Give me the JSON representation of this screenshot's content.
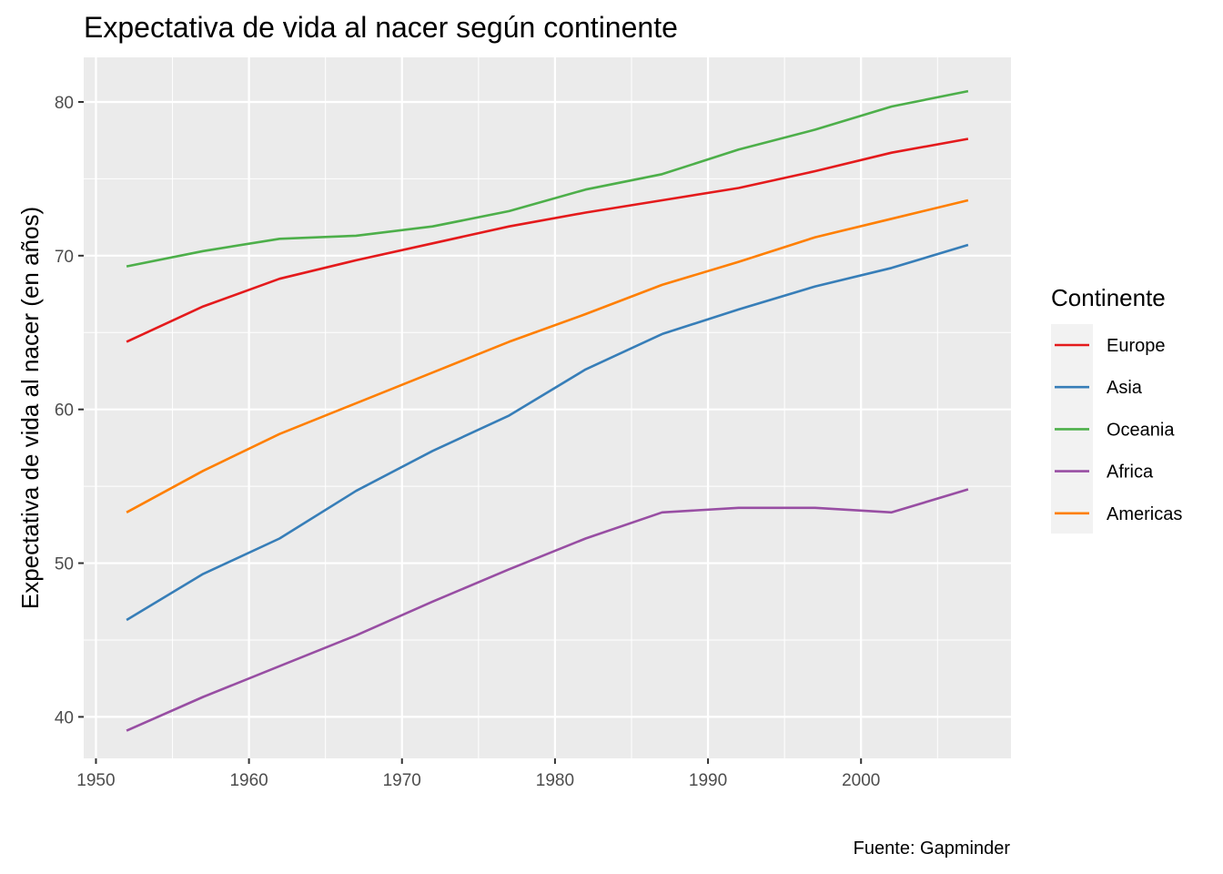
{
  "chart_data": {
    "type": "line",
    "title": "Expectativa de vida al nacer según continente",
    "xlabel": "",
    "ylabel": "Expectativa de vida al nacer (en años)",
    "caption": "Fuente: Gapminder",
    "legend_title": "Continente",
    "legend_position": "right",
    "grid": true,
    "xlim": [
      1949.2,
      2009.8
    ],
    "ylim": [
      37.3,
      82.9
    ],
    "x_ticks": [
      1950,
      1960,
      1970,
      1980,
      1990,
      2000
    ],
    "y_ticks": [
      40,
      50,
      60,
      70,
      80
    ],
    "x": [
      1952,
      1957,
      1962,
      1967,
      1972,
      1977,
      1982,
      1987,
      1992,
      1997,
      2002,
      2007
    ],
    "series": [
      {
        "name": "Europe",
        "color": "#e41a1c",
        "values": [
          64.4,
          66.7,
          68.5,
          69.7,
          70.8,
          71.9,
          72.8,
          73.6,
          74.4,
          75.5,
          76.7,
          77.6
        ]
      },
      {
        "name": "Asia",
        "color": "#377eb8",
        "values": [
          46.3,
          49.3,
          51.6,
          54.7,
          57.3,
          59.6,
          62.6,
          64.9,
          66.5,
          68.0,
          69.2,
          70.7
        ]
      },
      {
        "name": "Oceania",
        "color": "#4daf4a",
        "values": [
          69.3,
          70.3,
          71.1,
          71.3,
          71.9,
          72.9,
          74.3,
          75.3,
          76.9,
          78.2,
          79.7,
          80.7
        ]
      },
      {
        "name": "Africa",
        "color": "#984ea3",
        "values": [
          39.1,
          41.3,
          43.3,
          45.3,
          47.5,
          49.6,
          51.6,
          53.3,
          53.6,
          53.6,
          53.3,
          54.8
        ]
      },
      {
        "name": "Americas",
        "color": "#ff7f00",
        "values": [
          53.3,
          56.0,
          58.4,
          60.4,
          62.4,
          64.4,
          66.2,
          68.1,
          69.6,
          71.2,
          72.4,
          73.6
        ]
      }
    ]
  }
}
